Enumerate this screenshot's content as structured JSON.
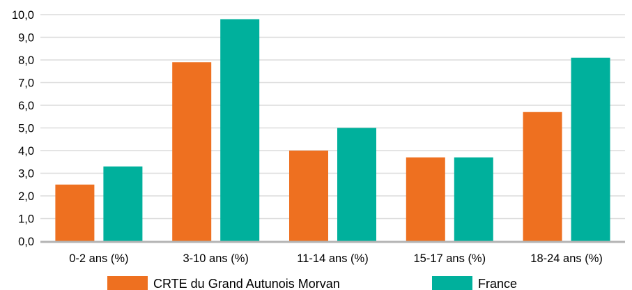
{
  "chart_data": {
    "type": "bar",
    "title": "",
    "xlabel": "",
    "ylabel": "",
    "categories": [
      "0-2 ans (%)",
      "3-10 ans (%)",
      "11-14 ans (%)",
      "15-17 ans (%)",
      "18-24 ans (%)"
    ],
    "series": [
      {
        "name": "CRTE du Grand Autunois Morvan",
        "color": "#ee7020",
        "values": [
          2.5,
          7.9,
          4.0,
          3.7,
          5.7
        ]
      },
      {
        "name": "France",
        "color": "#00b09c",
        "values": [
          3.3,
          9.8,
          5.0,
          3.7,
          8.1
        ]
      }
    ],
    "ylim": [
      0,
      10
    ],
    "yticks": [
      "0,0",
      "1,0",
      "2,0",
      "3,0",
      "4,0",
      "5,0",
      "6,0",
      "7,0",
      "8,0",
      "9,0",
      "10,0"
    ],
    "grid": true,
    "legend_position": "bottom"
  }
}
